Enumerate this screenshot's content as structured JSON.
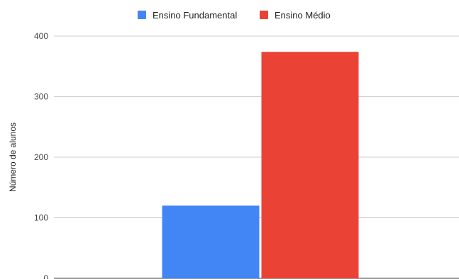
{
  "chart_data": {
    "type": "bar",
    "categories": [
      ""
    ],
    "series": [
      {
        "name": "Ensino Fundamental",
        "color": "#4285f4",
        "values": [
          120
        ]
      },
      {
        "name": "Ensino Médio",
        "color": "#ea4335",
        "values": [
          374
        ]
      }
    ],
    "ylabel": "Número de alunos",
    "xlabel": "",
    "ylim": [
      0,
      400
    ],
    "yticks": [
      "0",
      "100",
      "200",
      "300",
      "400"
    ],
    "grid": true,
    "legend_position": "top-center"
  }
}
